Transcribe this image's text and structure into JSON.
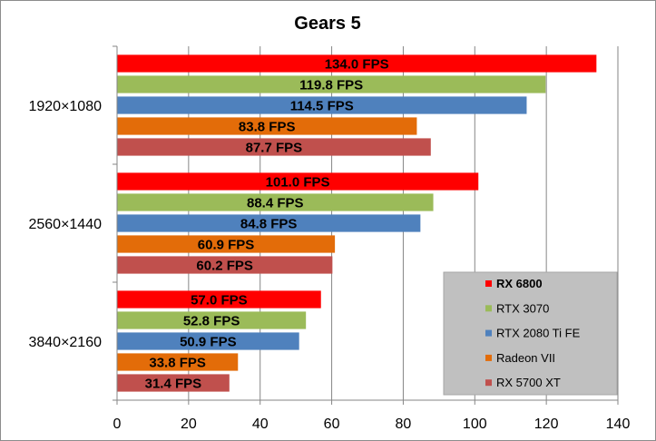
{
  "chart_data": {
    "type": "bar",
    "orientation": "horizontal",
    "title": "Gears 5",
    "xlabel": "",
    "ylabel": "",
    "xlim": [
      0,
      140
    ],
    "xticks": [
      0,
      20,
      40,
      60,
      80,
      100,
      120,
      140
    ],
    "grid": true,
    "legend_position": "bottom-right",
    "categories": [
      "1920×1080",
      "2560×1440",
      "3840×2160"
    ],
    "series": [
      {
        "name": "RX 6800",
        "color": "#ff0000",
        "values": [
          134.0,
          101.0,
          57.0
        ],
        "labels": [
          "134.0 FPS",
          "101.0 FPS",
          "57.0 FPS"
        ]
      },
      {
        "name": "RTX 3070",
        "color": "#9bbb59",
        "values": [
          119.8,
          88.4,
          52.8
        ],
        "labels": [
          "119.8 FPS",
          "88.4 FPS",
          "52.8 FPS"
        ]
      },
      {
        "name": "RTX 2080 Ti FE",
        "color": "#4f81bd",
        "values": [
          114.5,
          84.8,
          50.9
        ],
        "labels": [
          "114.5 FPS",
          "84.8 FPS",
          "50.9 FPS"
        ]
      },
      {
        "name": "Radeon VII",
        "color": "#e36c09",
        "values": [
          83.8,
          60.9,
          33.8
        ],
        "labels": [
          "83.8 FPS",
          "60.9 FPS",
          "33.8 FPS"
        ]
      },
      {
        "name": "RX 5700 XT",
        "color": "#c0504d",
        "values": [
          87.7,
          60.2,
          31.4
        ],
        "labels": [
          "87.7 FPS",
          "60.2 FPS",
          "31.4 FPS"
        ]
      }
    ]
  }
}
